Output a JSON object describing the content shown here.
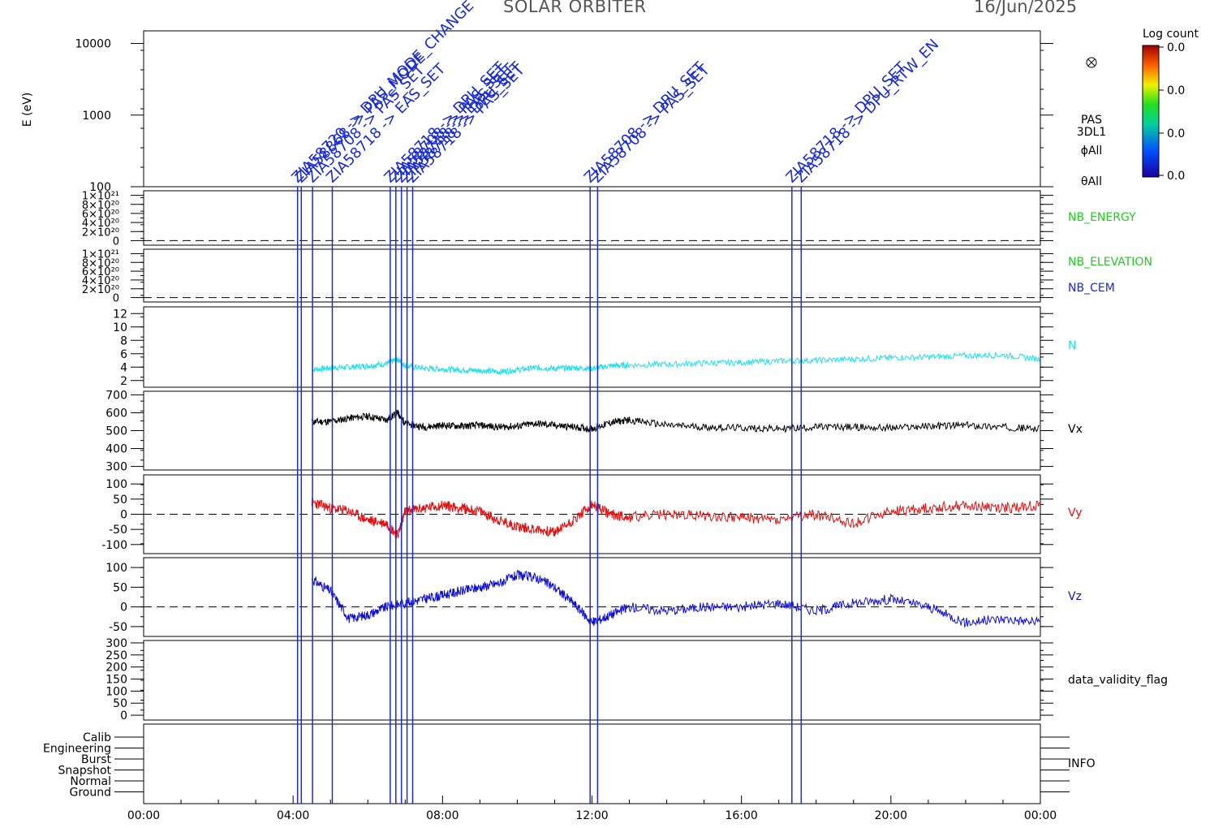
{
  "header": {
    "mission": "SOLAR ORBITER",
    "date": "16/Jun/2025"
  },
  "colorbar": {
    "title": "Log count",
    "ticks": [
      "0.0",
      "0.0",
      "0.0",
      "0.0"
    ]
  },
  "spectrogram": {
    "ylabel": "E (eV)",
    "instrument_labels": [
      "PAS",
      "3DL1",
      "ϕAll",
      "θAll"
    ]
  },
  "annotations": {
    "color": "#1a2bd0",
    "items": [
      {
        "time": 4.12,
        "text": "ZIA58720 -> DPU_MODE_CHANGE"
      },
      {
        "time": 4.22,
        "text": "ZIA58868 -> PAS_MODE"
      },
      {
        "time": 4.52,
        "text": "ZIA58708 -> PAS_SET"
      },
      {
        "time": 5.05,
        "text": "ZIA58718 -> EAS_SET"
      },
      {
        "time": 6.6,
        "text": "ZIA58718 -> DPU_SET"
      },
      {
        "time": 6.75,
        "text": "ZIA58708 -> PAS_SET"
      },
      {
        "time": 6.9,
        "text": "ZIA58718 -> EAS_SET"
      },
      {
        "time": 7.05,
        "text": "ZIA58718 -> DPU_SET"
      },
      {
        "time": 7.2,
        "text": "ZIA58718 -> PAS_SET"
      },
      {
        "time": 11.95,
        "text": "ZIA58708 -> DPU_SET"
      },
      {
        "time": 12.15,
        "text": "ZIA58708 -> PAS_SET"
      },
      {
        "time": 17.35,
        "text": "ZIA58718 -> DPU_SET"
      },
      {
        "time": 17.6,
        "text": "ZIA58718 -> DPU_RTW_EN"
      }
    ]
  },
  "legends": {
    "nb_energy": "NB_ENERGY",
    "nb_elevation": "NB_ELEVATION",
    "nb_cem": "NB_CEM",
    "n": "N",
    "vx": "Vx",
    "vy": "Vy",
    "vz": "Vz",
    "validity": "data_validity_flag",
    "info": "INFO"
  },
  "info_levels": [
    "Calib",
    "Engineering",
    "Burst",
    "Snapshot",
    "Normal",
    "Ground"
  ],
  "colors": {
    "n": "#22e0e8",
    "vx": "#000000",
    "vy": "#e01010",
    "vz": "#1010d0",
    "green_label": "#22cc22",
    "blue_label": "#1a2bd0"
  },
  "chart_data": [
    {
      "type": "heatmap",
      "name": "energy-spectrogram",
      "ylabel": "E (eV)",
      "yscale": "log",
      "yticks": [
        100,
        1000,
        10000
      ],
      "yticklabels": [
        "100",
        "1000",
        "10000"
      ],
      "ylim": [
        100,
        15000
      ]
    },
    {
      "type": "line",
      "name": "nb-energy",
      "yticklabels": [
        "1×10²¹",
        "8×10²⁰",
        "6×10²⁰",
        "4×10²⁰",
        "2×10²⁰",
        "0"
      ],
      "yticks": [
        1e+21,
        8e+20,
        6e+20,
        4e+20,
        2e+20,
        0
      ],
      "ylim": [
        -1e+20,
        1.1e+21
      ]
    },
    {
      "type": "line",
      "name": "nb-elevation",
      "yticklabels": [
        "1×10²¹",
        "8×10²⁰",
        "6×10²⁰",
        "4×10²⁰",
        "2×10²⁰",
        "0"
      ],
      "yticks": [
        1e+21,
        8e+20,
        6e+20,
        4e+20,
        2e+20,
        0
      ],
      "ylim": [
        -1e+20,
        1.1e+21
      ]
    },
    {
      "type": "line",
      "name": "density",
      "ylim": [
        1,
        13
      ],
      "yticks": [
        2,
        4,
        6,
        8,
        10,
        12
      ],
      "series": [
        {
          "name": "N",
          "points": [
            [
              4.5,
              3.6
            ],
            [
              5,
              3.9
            ],
            [
              5.5,
              4.0
            ],
            [
              6,
              4.2
            ],
            [
              6.5,
              4.5
            ],
            [
              6.8,
              5.2
            ],
            [
              7,
              4.2
            ],
            [
              7.5,
              3.8
            ],
            [
              8,
              3.7
            ],
            [
              8.5,
              3.6
            ],
            [
              9,
              3.5
            ],
            [
              9.5,
              3.3
            ],
            [
              10,
              3.6
            ],
            [
              10.5,
              3.9
            ],
            [
              11,
              3.8
            ],
            [
              11.5,
              3.9
            ],
            [
              12,
              3.8
            ],
            [
              12.5,
              4.2
            ],
            [
              13,
              4.3
            ],
            [
              14,
              4.4
            ],
            [
              15,
              4.6
            ],
            [
              16,
              4.7
            ],
            [
              17,
              4.9
            ],
            [
              18,
              5.0
            ],
            [
              19,
              5.2
            ],
            [
              20,
              5.4
            ],
            [
              21,
              5.5
            ],
            [
              22,
              5.7
            ],
            [
              23,
              5.8
            ],
            [
              24,
              5.2
            ]
          ]
        }
      ]
    },
    {
      "type": "line",
      "name": "vx",
      "ylim": [
        280,
        720
      ],
      "yticks": [
        300,
        400,
        500,
        600,
        700
      ],
      "series": [
        {
          "name": "Vx",
          "points": [
            [
              4.5,
              550
            ],
            [
              5,
              550
            ],
            [
              5.5,
              570
            ],
            [
              6,
              580
            ],
            [
              6.5,
              560
            ],
            [
              6.8,
              600
            ],
            [
              7,
              540
            ],
            [
              7.5,
              520
            ],
            [
              8,
              530
            ],
            [
              8.5,
              525
            ],
            [
              9,
              530
            ],
            [
              9.5,
              520
            ],
            [
              10,
              525
            ],
            [
              10.5,
              540
            ],
            [
              11,
              530
            ],
            [
              11.5,
              520
            ],
            [
              12,
              510
            ],
            [
              12.5,
              545
            ],
            [
              13,
              560
            ],
            [
              14,
              530
            ],
            [
              15,
              520
            ],
            [
              16,
              515
            ],
            [
              17,
              510
            ],
            [
              18,
              520
            ],
            [
              19,
              520
            ],
            [
              20,
              515
            ],
            [
              21,
              525
            ],
            [
              22,
              530
            ],
            [
              23,
              520
            ],
            [
              24,
              510
            ]
          ]
        }
      ]
    },
    {
      "type": "line",
      "name": "vy",
      "ylim": [
        -130,
        130
      ],
      "yticks": [
        -100,
        -50,
        0,
        50,
        100
      ],
      "series": [
        {
          "name": "Vy",
          "points": [
            [
              4.5,
              40
            ],
            [
              5,
              20
            ],
            [
              5.5,
              10
            ],
            [
              6,
              -20
            ],
            [
              6.5,
              -30
            ],
            [
              6.8,
              -70
            ],
            [
              7,
              10
            ],
            [
              7.5,
              20
            ],
            [
              8,
              30
            ],
            [
              8.5,
              20
            ],
            [
              9,
              10
            ],
            [
              9.5,
              -20
            ],
            [
              10,
              -40
            ],
            [
              10.5,
              -50
            ],
            [
              11,
              -60
            ],
            [
              11.5,
              -20
            ],
            [
              12,
              30
            ],
            [
              12.5,
              0
            ],
            [
              13,
              -10
            ],
            [
              14,
              0
            ],
            [
              15,
              -5
            ],
            [
              16,
              -10
            ],
            [
              17,
              -20
            ],
            [
              18,
              0
            ],
            [
              19,
              -30
            ],
            [
              20,
              10
            ],
            [
              21,
              20
            ],
            [
              22,
              30
            ],
            [
              23,
              20
            ],
            [
              24,
              30
            ]
          ]
        }
      ]
    },
    {
      "type": "line",
      "name": "vz",
      "ylim": [
        -75,
        125
      ],
      "yticks": [
        -50,
        0,
        50,
        100
      ],
      "series": [
        {
          "name": "Vz",
          "points": [
            [
              4.5,
              70
            ],
            [
              5,
              40
            ],
            [
              5.5,
              -30
            ],
            [
              6,
              -20
            ],
            [
              6.5,
              0
            ],
            [
              7,
              10
            ],
            [
              7.5,
              20
            ],
            [
              8,
              30
            ],
            [
              8.5,
              40
            ],
            [
              9,
              50
            ],
            [
              9.5,
              60
            ],
            [
              10,
              80
            ],
            [
              10.5,
              75
            ],
            [
              11,
              50
            ],
            [
              11.5,
              10
            ],
            [
              12,
              -40
            ],
            [
              12.5,
              -20
            ],
            [
              13,
              0
            ],
            [
              14,
              -10
            ],
            [
              15,
              0
            ],
            [
              16,
              0
            ],
            [
              17,
              10
            ],
            [
              18,
              -10
            ],
            [
              19,
              10
            ],
            [
              20,
              20
            ],
            [
              21,
              0
            ],
            [
              22,
              -40
            ],
            [
              23,
              -30
            ],
            [
              24,
              -40
            ]
          ]
        }
      ]
    },
    {
      "type": "line",
      "name": "validity",
      "ylim": [
        -20,
        310
      ],
      "yticks": [
        0,
        50,
        100,
        150,
        200,
        250,
        300
      ]
    },
    {
      "type": "line",
      "name": "info",
      "categories": [
        "Calib",
        "Engineering",
        "Burst",
        "Snapshot",
        "Normal",
        "Ground"
      ]
    }
  ],
  "xaxis": {
    "ticklabels": [
      "00:00",
      "04:00",
      "08:00",
      "12:00",
      "16:00",
      "20:00",
      "00:00"
    ],
    "xlim": [
      0,
      24
    ]
  }
}
